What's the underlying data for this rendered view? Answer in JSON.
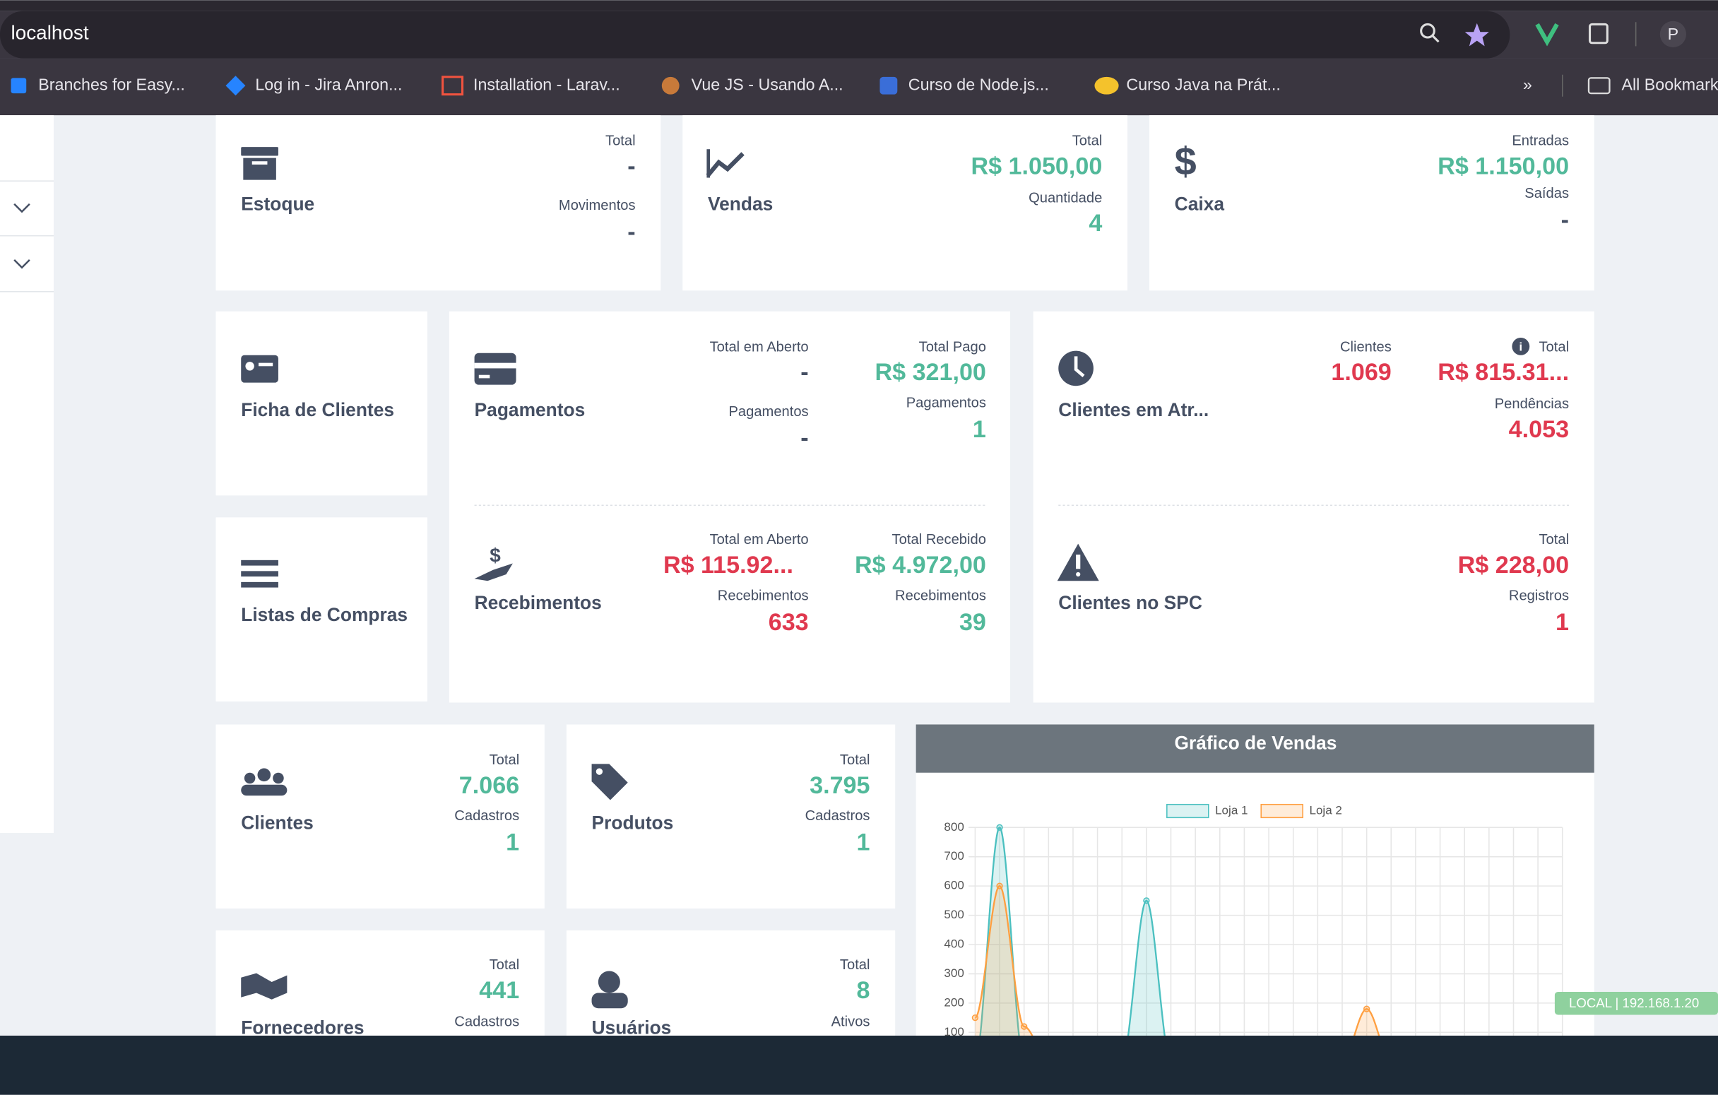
{
  "header": {
    "url": "localhost",
    "profile": "P",
    "bookmarks": [
      "Branches for Easy...",
      "Log in - Jira Anron...",
      "Installation - Larav...",
      "Vue JS - Usando A...",
      "Curso de Node.js...",
      "Curso Java na Prát..."
    ],
    "all_bookmarks": "All Bookmarks"
  },
  "cards": {
    "estoque": {
      "title": "Estoque",
      "stats": [
        {
          "label": "Total",
          "value": "-"
        },
        {
          "label": "Movimentos",
          "value": "-"
        }
      ]
    },
    "vendas": {
      "title": "Vendas",
      "stats": [
        {
          "label": "Total",
          "value": "R$ 1.050,00"
        },
        {
          "label": "Quantidade",
          "value": "4"
        }
      ]
    },
    "caixa": {
      "title": "Caixa",
      "stats": [
        {
          "label": "Entradas",
          "value": "R$ 1.150,00"
        },
        {
          "label": "Saídas",
          "value": "-"
        }
      ]
    },
    "ficha_clientes": {
      "title": "Ficha de Clientes"
    },
    "listas_compras": {
      "title": "Listas de Compras"
    },
    "pagamentos": {
      "title": "Pagamentos",
      "stats": [
        {
          "label": "Total em Aberto",
          "value": "-"
        },
        {
          "label": "Pagamentos",
          "value": "-"
        },
        {
          "label": "Total Pago",
          "value": "R$ 321,00"
        },
        {
          "label": "Pagamentos",
          "value": "1"
        }
      ]
    },
    "recebimentos": {
      "title": "Recebimentos",
      "stats": [
        {
          "label": "Total em Aberto",
          "value": "R$ 115.92..."
        },
        {
          "label": "Recebimentos",
          "value": "633"
        },
        {
          "label": "Total Recebido",
          "value": "R$ 4.972,00"
        },
        {
          "label": "Recebimentos",
          "value": "39"
        }
      ]
    },
    "clientes_atraso": {
      "title": "Clientes em Atr...",
      "stats": [
        {
          "label": "Clientes",
          "value": "1.069"
        },
        {
          "label": "Total",
          "value": "R$ 815.31..."
        },
        {
          "label": "Pendências",
          "value": "4.053"
        }
      ]
    },
    "clientes_spc": {
      "title": "Clientes no SPC",
      "stats": [
        {
          "label": "Total",
          "value": "R$ 228,00"
        },
        {
          "label": "Registros",
          "value": "1"
        }
      ]
    },
    "clientes": {
      "title": "Clientes",
      "stats": [
        {
          "label": "Total",
          "value": "7.066"
        },
        {
          "label": "Cadastros",
          "value": "1"
        }
      ]
    },
    "produtos": {
      "title": "Produtos",
      "stats": [
        {
          "label": "Total",
          "value": "3.795"
        },
        {
          "label": "Cadastros",
          "value": "1"
        }
      ]
    },
    "fornecedores": {
      "title": "Fornecedores",
      "stats": [
        {
          "label": "Total",
          "value": "441"
        },
        {
          "label": "Cadastros"
        }
      ]
    },
    "usuarios": {
      "title": "Usuários",
      "stats": [
        {
          "label": "Total",
          "value": "8"
        },
        {
          "label": "Ativos"
        }
      ]
    }
  },
  "chart_data": {
    "type": "line",
    "title": "Gráfico de Vendas",
    "categories": [
      null,
      null,
      null,
      null,
      null,
      null,
      null,
      null,
      null,
      null,
      null,
      null,
      null,
      null,
      null,
      null,
      null,
      null,
      null,
      null,
      null,
      null,
      null,
      null,
      null
    ],
    "series": [
      {
        "name": "Loja 1",
        "color": "#4bc0c0",
        "values": [
          0,
          800,
          0,
          0,
          0,
          0,
          0,
          550,
          0,
          0,
          0,
          0,
          0,
          0,
          0,
          0,
          0,
          0,
          0,
          0,
          0,
          0,
          0,
          0,
          0
        ]
      },
      {
        "name": "Loja 2",
        "color": "#ff9f40",
        "values": [
          150,
          600,
          120,
          0,
          0,
          0,
          0,
          0,
          0,
          0,
          0,
          0,
          0,
          0,
          0,
          0,
          180,
          0,
          0,
          0,
          0,
          0,
          0,
          0,
          0
        ]
      }
    ],
    "ylim": [
      0,
      800
    ],
    "yticks": [
      100,
      200,
      300,
      400,
      500,
      600,
      700,
      800
    ],
    "grid": true,
    "legend": "top"
  },
  "badge": "LOCAL | 192.168.1.20"
}
